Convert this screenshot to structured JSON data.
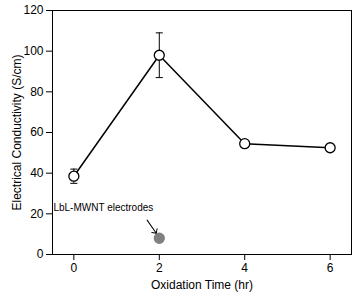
{
  "chart_data": {
    "type": "line",
    "x_label": "Oxidation Time (hr)",
    "y_label": "Electrical Conductivity (S/cm)",
    "x": [
      0,
      2,
      4,
      6
    ],
    "series": [
      {
        "color": "#000000",
        "marker": "open_circle",
        "line_style": "solid",
        "values": [
          38.5,
          98,
          54.5,
          52.5
        ],
        "errors": [
          3.5,
          11,
          1,
          1
        ]
      },
      {
        "name": "LbL-MWNT electrodes",
        "type": "scatter",
        "color": "#808080",
        "marker": "circle",
        "x": [
          2
        ],
        "values": [
          8
        ]
      }
    ],
    "xlim": [
      -0.5,
      6.5
    ],
    "ylim": [
      0,
      120
    ],
    "xticks": [
      0,
      2,
      4,
      6
    ],
    "yticks": [
      0,
      20,
      40,
      60,
      80,
      100,
      120
    ],
    "grid": false
  }
}
